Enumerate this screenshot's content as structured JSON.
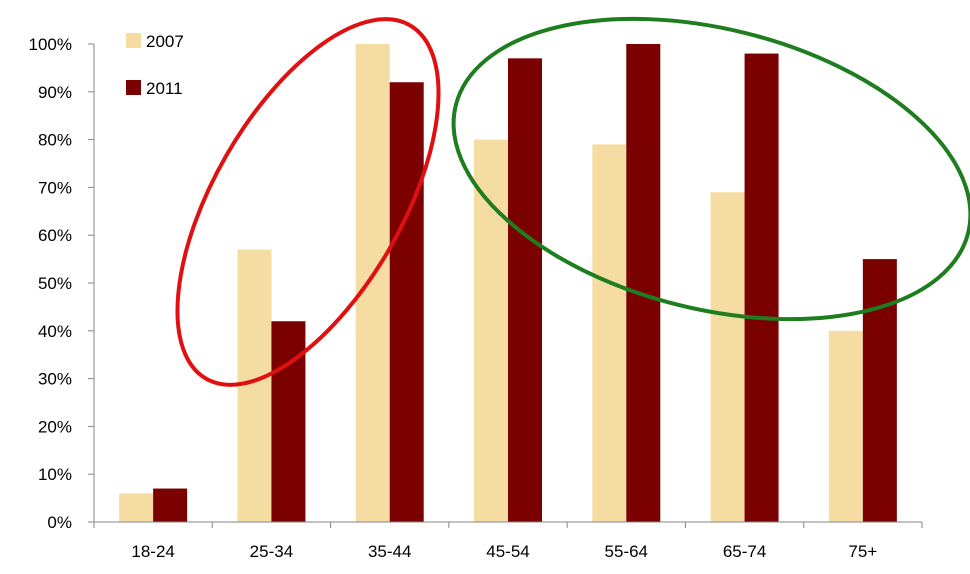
{
  "chart_data": {
    "type": "bar",
    "categories": [
      "18-24",
      "25-34",
      "35-44",
      "45-54",
      "55-64",
      "65-74",
      "75+"
    ],
    "series": [
      {
        "name": "2007",
        "color": "#f5dca3",
        "values": [
          6,
          57,
          100,
          80,
          79,
          69,
          40
        ]
      },
      {
        "name": "2011",
        "color": "#7b0000",
        "values": [
          7,
          42,
          92,
          97,
          100,
          98,
          55
        ]
      }
    ],
    "ylim": [
      0,
      100
    ],
    "yticks": [
      "0%",
      "10%",
      "20%",
      "30%",
      "40%",
      "50%",
      "60%",
      "70%",
      "80%",
      "90%",
      "100%"
    ],
    "grid": false,
    "legend_position": "top-left",
    "annotations": [
      {
        "shape": "ellipse",
        "color": "#e01010",
        "covers": [
          "25-34",
          "35-44"
        ]
      },
      {
        "shape": "ellipse",
        "color": "#1e7d1e",
        "covers": [
          "45-54",
          "55-64",
          "65-74",
          "75+"
        ]
      }
    ]
  }
}
